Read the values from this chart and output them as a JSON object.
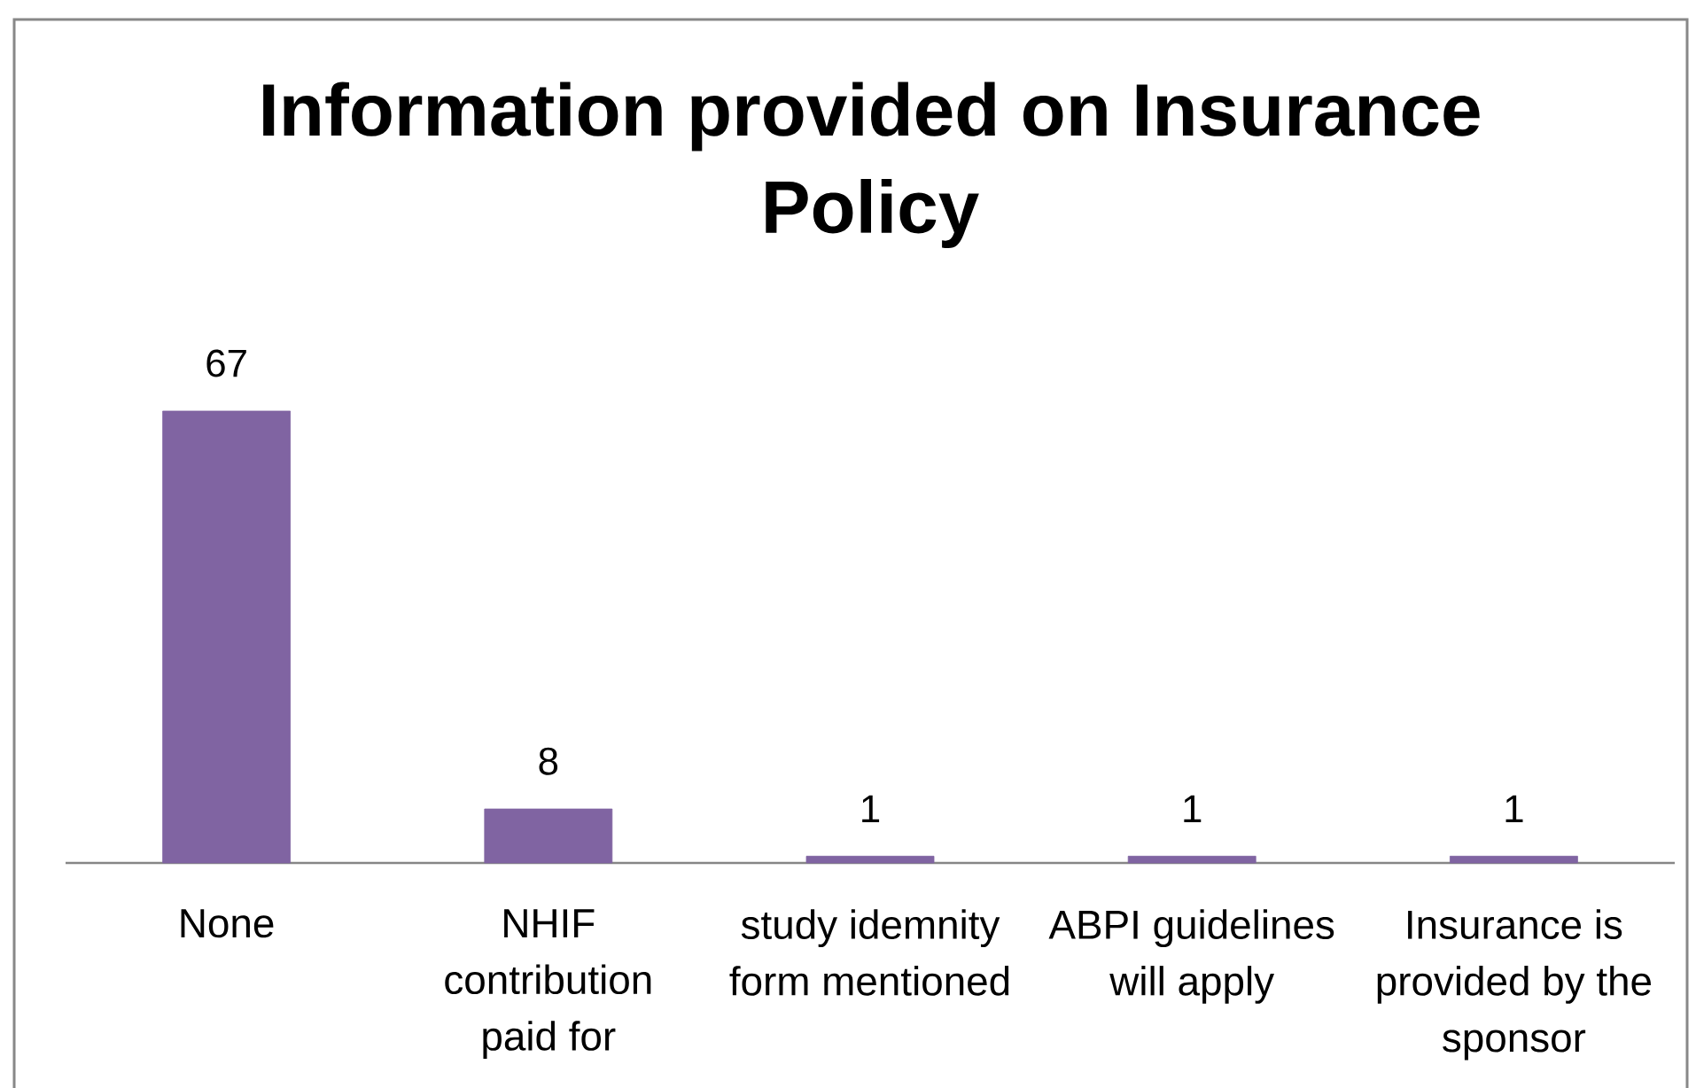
{
  "chart_data": {
    "type": "bar",
    "title": "Information provided on Insurance Policy",
    "categories": [
      "None",
      "NHIF contribution paid for",
      "study idemnity form mentioned",
      "ABPI guidelines will apply",
      "Insurance is provided by the sponsor"
    ],
    "values": [
      67,
      8,
      1,
      1,
      1
    ],
    "color": "#8064a2",
    "data_labels": true
  }
}
